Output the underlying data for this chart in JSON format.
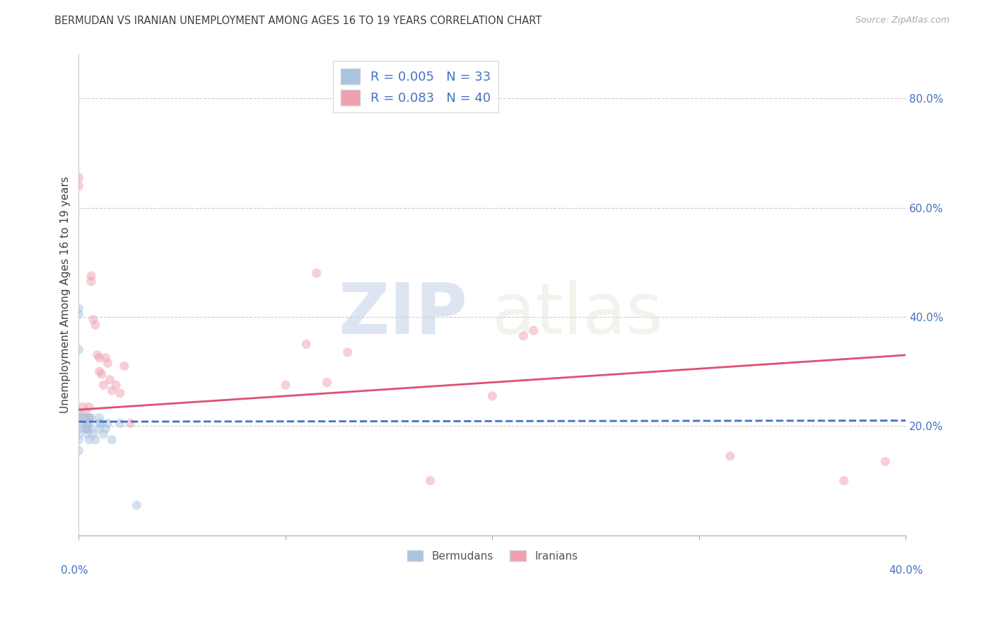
{
  "title": "BERMUDAN VS IRANIAN UNEMPLOYMENT AMONG AGES 16 TO 19 YEARS CORRELATION CHART",
  "source": "Source: ZipAtlas.com",
  "ylabel": "Unemployment Among Ages 16 to 19 years",
  "right_yticks": [
    "80.0%",
    "60.0%",
    "40.0%",
    "20.0%"
  ],
  "right_ytick_vals": [
    0.8,
    0.6,
    0.4,
    0.2
  ],
  "xlim": [
    0.0,
    0.4
  ],
  "ylim": [
    0.0,
    0.88
  ],
  "grid_yticks": [
    0.8,
    0.6,
    0.4,
    0.2
  ],
  "legend1_r": "0.005",
  "legend1_n": "33",
  "legend2_r": "0.083",
  "legend2_n": "40",
  "legend1_label": "Bermudans",
  "legend2_label": "Iranians",
  "bermudan_color": "#a8c4e0",
  "iranian_color": "#f0a0b0",
  "bermudan_line_color": "#4472c4",
  "iranian_line_color": "#e05070",
  "bermudan_scatter_x": [
    0.0,
    0.0,
    0.0,
    0.0,
    0.0,
    0.0,
    0.0,
    0.0,
    0.0,
    0.0,
    0.003,
    0.003,
    0.003,
    0.004,
    0.004,
    0.004,
    0.005,
    0.005,
    0.005,
    0.006,
    0.006,
    0.007,
    0.008,
    0.01,
    0.01,
    0.01,
    0.011,
    0.012,
    0.013,
    0.014,
    0.016,
    0.02,
    0.028
  ],
  "bermudan_scatter_y": [
    0.415,
    0.405,
    0.34,
    0.225,
    0.215,
    0.205,
    0.195,
    0.185,
    0.175,
    0.155,
    0.215,
    0.205,
    0.195,
    0.205,
    0.195,
    0.185,
    0.215,
    0.205,
    0.175,
    0.215,
    0.195,
    0.185,
    0.175,
    0.215,
    0.205,
    0.195,
    0.205,
    0.185,
    0.195,
    0.205,
    0.175,
    0.205,
    0.055
  ],
  "iranian_scatter_x": [
    0.0,
    0.0,
    0.0,
    0.002,
    0.003,
    0.003,
    0.004,
    0.004,
    0.005,
    0.005,
    0.006,
    0.006,
    0.007,
    0.008,
    0.009,
    0.01,
    0.01,
    0.011,
    0.012,
    0.013,
    0.014,
    0.015,
    0.016,
    0.018,
    0.02,
    0.022,
    0.025,
    0.1,
    0.115,
    0.12,
    0.13,
    0.17,
    0.2,
    0.215,
    0.22,
    0.315,
    0.37,
    0.39,
    0.004,
    0.11
  ],
  "iranian_scatter_y": [
    0.655,
    0.64,
    0.215,
    0.235,
    0.225,
    0.215,
    0.205,
    0.195,
    0.235,
    0.215,
    0.475,
    0.465,
    0.395,
    0.385,
    0.33,
    0.325,
    0.3,
    0.295,
    0.275,
    0.325,
    0.315,
    0.285,
    0.265,
    0.275,
    0.26,
    0.31,
    0.205,
    0.275,
    0.48,
    0.28,
    0.335,
    0.1,
    0.255,
    0.365,
    0.375,
    0.145,
    0.1,
    0.135,
    0.195,
    0.35
  ],
  "bermudan_trendline_x": [
    0.0,
    0.4
  ],
  "bermudan_trendline_y": [
    0.208,
    0.21
  ],
  "iranian_trendline_x": [
    0.0,
    0.4
  ],
  "iranian_trendline_y": [
    0.23,
    0.33
  ],
  "background_color": "#ffffff",
  "title_color": "#404040",
  "watermark_zip": "ZIP",
  "watermark_atlas": "atlas",
  "right_axis_color": "#4472c4",
  "scatter_size": 90,
  "scatter_alpha": 0.5
}
